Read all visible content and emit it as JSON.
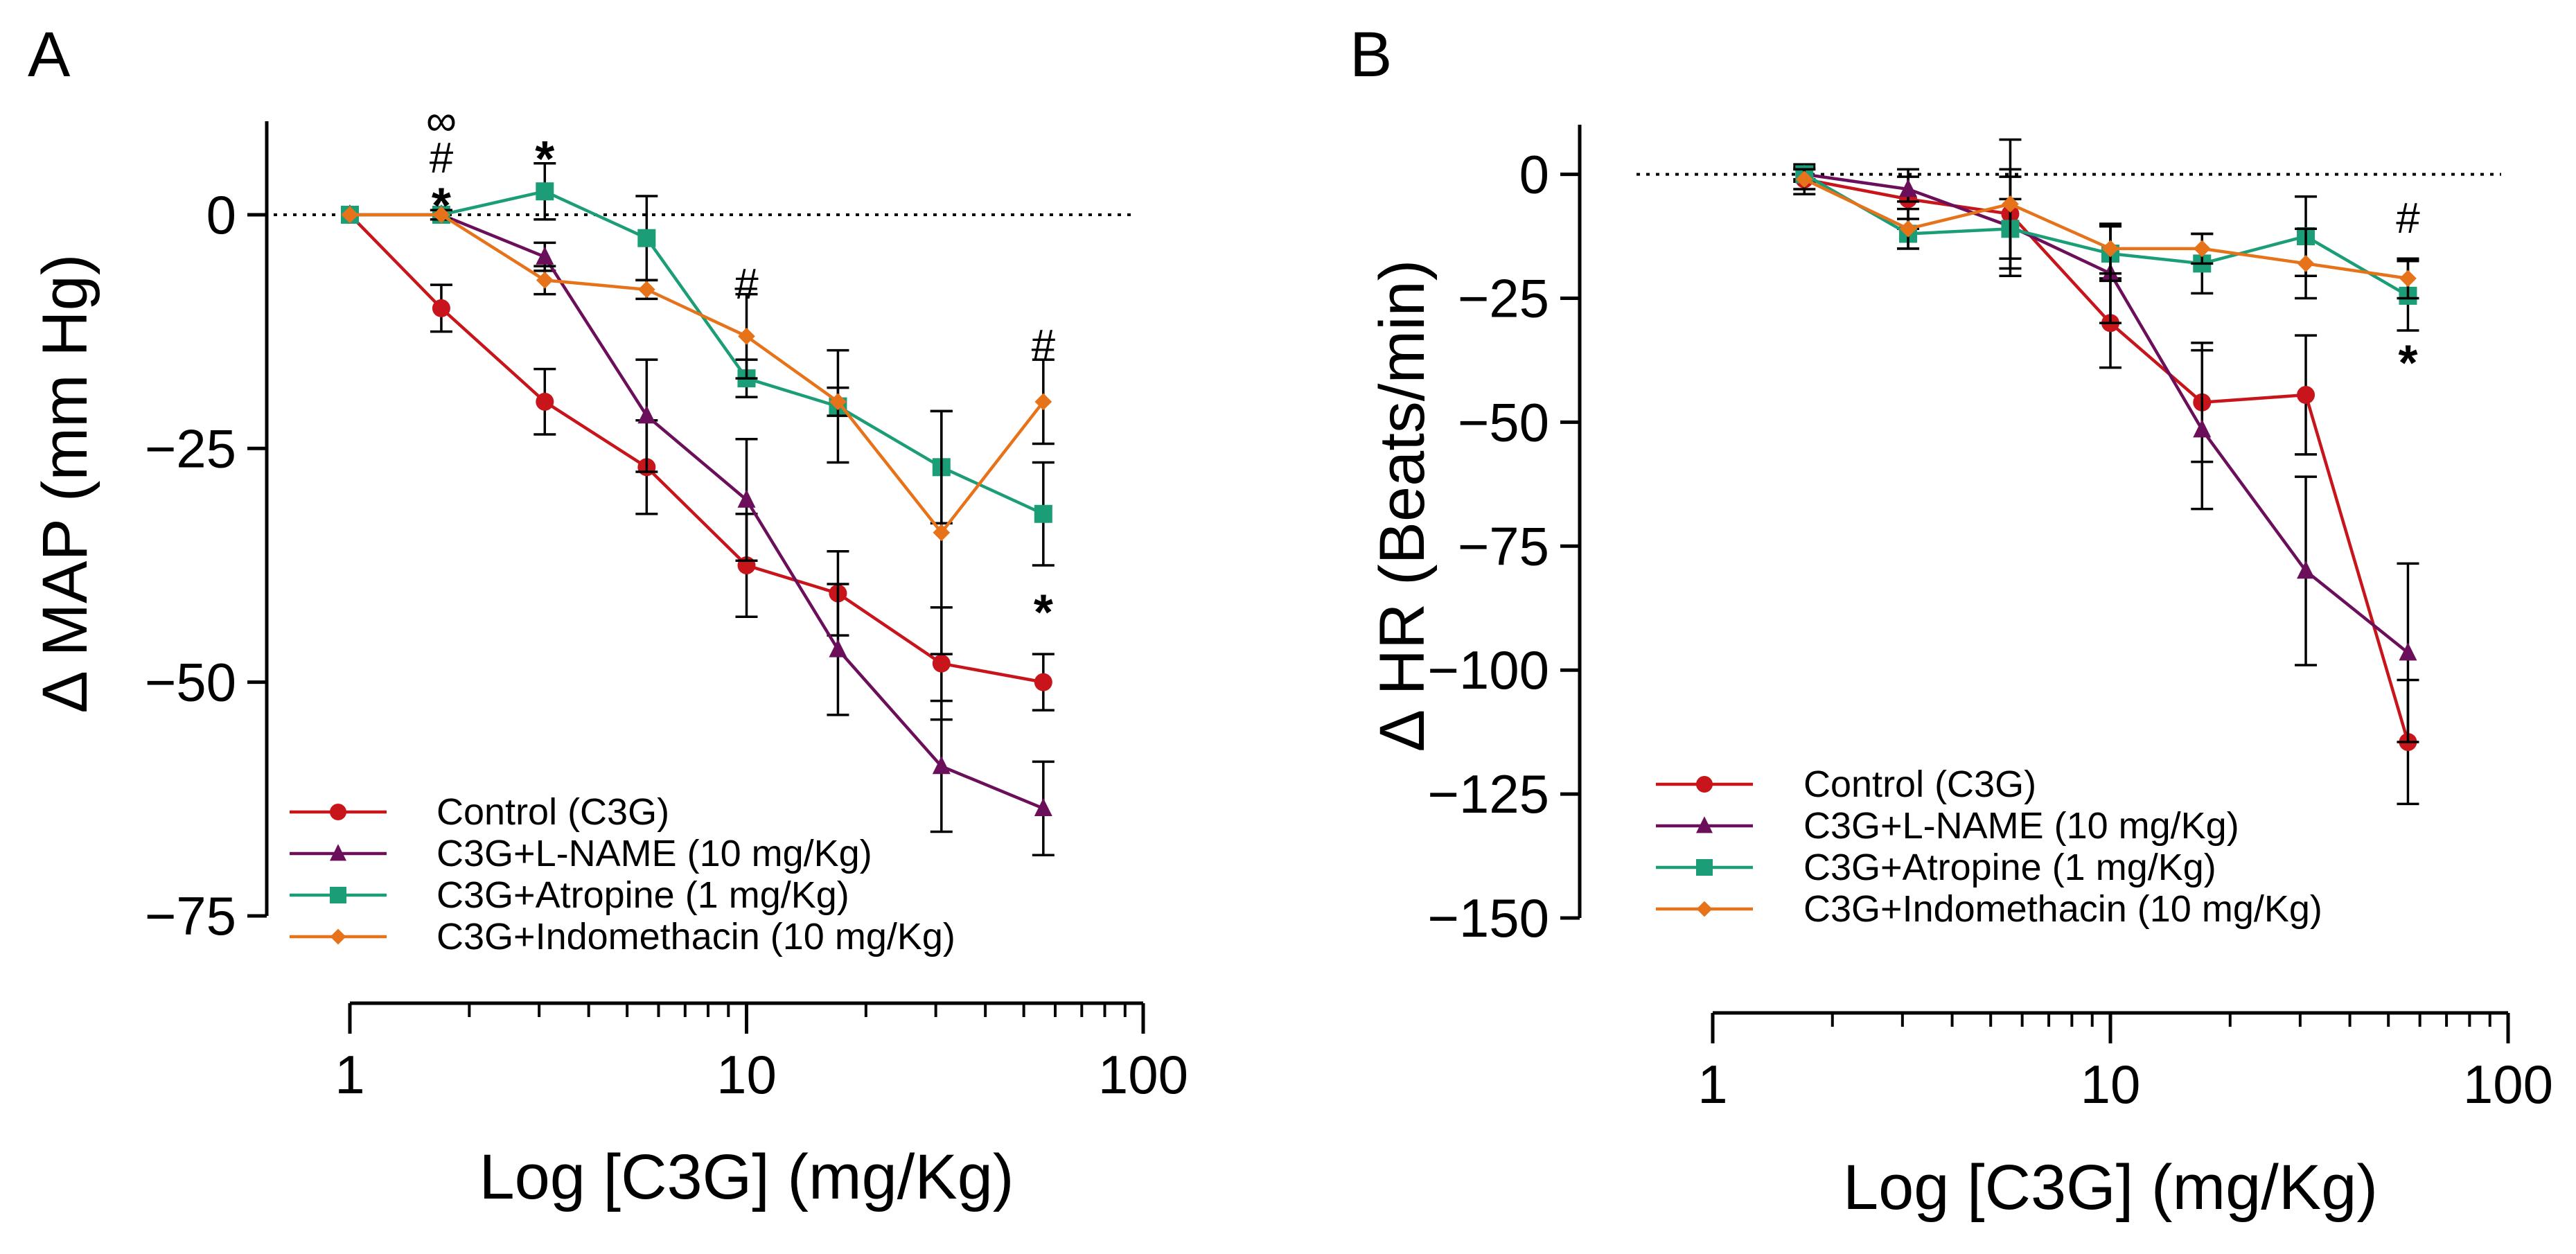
{
  "figure": {
    "colors": {
      "control": "#c8141b",
      "lname": "#6b0f5a",
      "atropine": "#1b9e77",
      "indomethacin": "#e6731a"
    }
  },
  "chart_data": [
    {
      "type": "line",
      "panel_label": "A",
      "xlabel": "Log [C3G] (mg/Kg)",
      "ylabel": "Δ MAP (mm Hg)",
      "xscale": "log",
      "xlim": [
        1,
        100
      ],
      "ylim": [
        -75,
        10
      ],
      "x_ticks": [
        1,
        10,
        100
      ],
      "x_tick_labels": [
        "1",
        "10",
        "100"
      ],
      "y_ticks": [
        0,
        -25,
        -50,
        -75
      ],
      "y_tick_labels": [
        "0",
        "−25",
        "−50",
        "−75"
      ],
      "reference_line": 0,
      "legend_position": "bottom-left",
      "series": [
        {
          "key": "control",
          "name": "Control (C3G)",
          "marker": "circle",
          "x": [
            1,
            1.7,
            3.1,
            5.6,
            10,
            17,
            31,
            56
          ],
          "y": [
            0,
            -10,
            -20,
            -27,
            -37.5,
            -40.5,
            -48,
            -50
          ],
          "err": [
            0,
            2.5,
            3.5,
            5,
            5.5,
            4.5,
            6,
            3
          ]
        },
        {
          "key": "lname",
          "name": "C3G+L-NAME (10 mg/Kg)",
          "marker": "triangle",
          "x": [
            1,
            1.7,
            3.1,
            5.6,
            10,
            17,
            31,
            56
          ],
          "y": [
            0,
            0,
            -4.5,
            -21.5,
            -30.5,
            -46.5,
            -59,
            -63.5
          ],
          "err": [
            0,
            0.5,
            1.5,
            6,
            6.5,
            7,
            7,
            5
          ]
        },
        {
          "key": "atropine",
          "name": "C3G+Atropine (1 mg/Kg)",
          "marker": "square",
          "x": [
            1,
            1.7,
            3.1,
            5.6,
            10,
            17,
            31,
            56
          ],
          "y": [
            0,
            0,
            2.5,
            -2.5,
            -17.5,
            -20.5,
            -27,
            -32
          ],
          "err": [
            0,
            0.5,
            3,
            4.5,
            2,
            6,
            6,
            5.5
          ]
        },
        {
          "key": "indomethacin",
          "name": "C3G+Indomethacin (10 mg/Kg)",
          "marker": "diamond",
          "x": [
            1,
            1.7,
            3.1,
            5.6,
            10,
            17,
            31,
            56
          ],
          "y": [
            0,
            0,
            -7,
            -8,
            -13,
            -20,
            -34,
            -20
          ],
          "err": [
            0,
            0.5,
            1.5,
            1,
            4.5,
            1.5,
            13,
            4.5
          ]
        }
      ],
      "annotations": [
        {
          "text": "∞",
          "x": 1.7,
          "y": 10
        },
        {
          "text": "#",
          "x": 1.7,
          "y": 6
        },
        {
          "text": "*",
          "x": 1.7,
          "y": 1.5
        },
        {
          "text": "*",
          "x": 3.1,
          "y": 6.5
        },
        {
          "text": "#",
          "x": 10,
          "y": -7.5
        },
        {
          "text": "#",
          "x": 56,
          "y": -14
        },
        {
          "text": "*",
          "x": 56,
          "y": -42
        }
      ]
    },
    {
      "type": "line",
      "panel_label": "B",
      "xlabel": "Log [C3G] (mg/Kg)",
      "ylabel": "Δ HR (Beats/min)",
      "xscale": "log",
      "xlim": [
        1,
        100
      ],
      "ylim": [
        -150,
        10
      ],
      "x_ticks": [
        1,
        10,
        100
      ],
      "x_tick_labels": [
        "1",
        "10",
        "100"
      ],
      "y_ticks": [
        0,
        -25,
        -50,
        -75,
        -100,
        -125,
        -150
      ],
      "y_tick_labels": [
        "0",
        "−25",
        "−50",
        "−75",
        "−100",
        "−125",
        "−150"
      ],
      "reference_line": 0,
      "legend_position": "bottom-left",
      "series": [
        {
          "key": "control",
          "name": "Control (C3G)",
          "marker": "circle",
          "x": [
            1.7,
            3.1,
            5.6,
            10,
            17,
            31,
            56
          ],
          "y": [
            -1,
            -5,
            -8,
            -30,
            -46,
            -44.5,
            -114.5
          ],
          "err": [
            3,
            6,
            9,
            9,
            12,
            12,
            12.5
          ]
        },
        {
          "key": "lname",
          "name": "C3G+L-NAME (10 mg/Kg)",
          "marker": "triangle",
          "x": [
            1.7,
            3.1,
            5.6,
            10,
            17,
            31,
            56
          ],
          "y": [
            0,
            -3,
            -10.5,
            -20,
            -51.5,
            -80,
            -96.5
          ],
          "err": [
            1,
            2.5,
            10,
            10,
            16,
            19,
            18
          ]
        },
        {
          "key": "atropine",
          "name": "C3G+Atropine (1 mg/Kg)",
          "marker": "square",
          "x": [
            1.7,
            3.1,
            5.6,
            10,
            17,
            31,
            56
          ],
          "y": [
            0,
            -12,
            -11,
            -16,
            -18,
            -12.5,
            -24.5
          ],
          "err": [
            1.5,
            3,
            6,
            5.5,
            6,
            8,
            7
          ]
        },
        {
          "key": "indomethacin",
          "name": "C3G+Indomethacin (10 mg/Kg)",
          "marker": "diamond",
          "x": [
            1.7,
            3.1,
            5.6,
            10,
            17,
            31,
            56
          ],
          "y": [
            -1,
            -11,
            -6,
            -15,
            -15,
            -18,
            -21
          ],
          "err": [
            2,
            4,
            13,
            5,
            3,
            7,
            4
          ]
        }
      ],
      "annotations": [
        {
          "text": "#",
          "x": 56,
          "y": -9
        },
        {
          "text": "*",
          "x": 56,
          "y": -37
        }
      ]
    }
  ]
}
